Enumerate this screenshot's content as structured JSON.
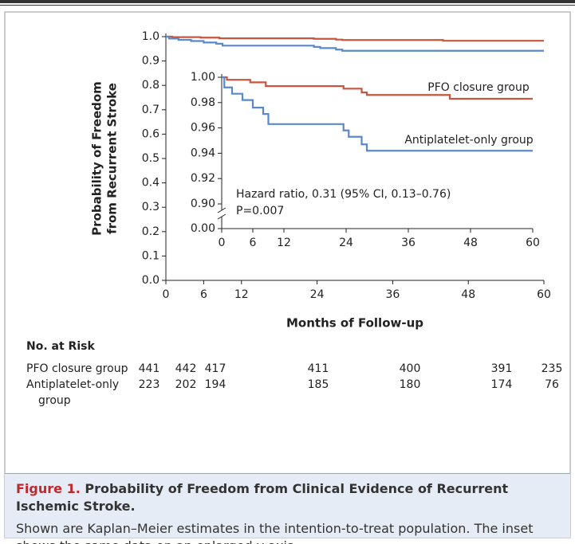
{
  "chart_data": [
    {
      "type": "step",
      "y_label": [
        "Probability of Freedom",
        "from Recurrent Stroke"
      ],
      "x_label": "Months of Follow-up",
      "xlim": [
        0,
        60
      ],
      "xticks": [
        0,
        6,
        12,
        24,
        36,
        48,
        60
      ],
      "ylim": [
        0,
        1
      ],
      "yticks": [
        {
          "value": 0,
          "label": "0.0"
        },
        0.1,
        0.2,
        0.3,
        0.4,
        0.5,
        0.6,
        0.7,
        0.8,
        0.9,
        {
          "value": 1,
          "label": "1.0"
        }
      ],
      "series": [
        {
          "name": "PFO closure group",
          "color": "#c8553d",
          "x": [
            0,
            1,
            5.5,
            8.5,
            23.5,
            27,
            28,
            44,
            60
          ],
          "values": [
            1.0,
            0.998,
            0.996,
            0.993,
            0.991,
            0.988,
            0.986,
            0.983,
            0.983
          ]
        },
        {
          "name": "Antiplatelet-only group",
          "color": "#5b88c9",
          "x": [
            0,
            0.5,
            2,
            4,
            6,
            8,
            9,
            23.5,
            24.5,
            27,
            28,
            60
          ],
          "values": [
            1.0,
            0.992,
            0.987,
            0.982,
            0.976,
            0.971,
            0.963,
            0.958,
            0.953,
            0.947,
            0.942,
            0.942
          ]
        }
      ]
    },
    {
      "type": "step",
      "inset": true,
      "axis_break": true,
      "xlim": [
        0,
        60
      ],
      "xticks": [
        0,
        6,
        12,
        24,
        36,
        48,
        60
      ],
      "ylim": [
        0.9,
        1.0
      ],
      "yticks": [
        {
          "value": 0,
          "label": "0.00"
        },
        {
          "value": 0.9,
          "label": "0.90"
        },
        {
          "value": 0.92,
          "label": "0.92"
        },
        {
          "value": 0.94,
          "label": "0.94"
        },
        {
          "value": 0.96,
          "label": "0.96"
        },
        {
          "value": 0.98,
          "label": "0.98"
        },
        {
          "value": 1,
          "label": "1.00"
        }
      ],
      "annotations": [
        "Hazard ratio, 0.31 (95% CI, 0.13–0.76)",
        "P=0.007"
      ]
    }
  ],
  "risk_table": {
    "title": "No. at Risk",
    "rows": [
      {
        "label": "PFO closure group",
        "counts": [
          441,
          442,
          417,
          411,
          400,
          391,
          235
        ]
      },
      {
        "label": "Antiplatelet-only group",
        "counts": [
          223,
          202,
          194,
          185,
          180,
          174,
          76
        ]
      }
    ]
  },
  "caption": {
    "label": "Figure 1.",
    "title": "Probability of Freedom from Clinical Evidence of Recurrent Ischemic Stroke.",
    "text": "Shown are Kaplan–Meier estimates in the intention-to-treat population. The inset shows the same data on an enlarged y axis."
  }
}
